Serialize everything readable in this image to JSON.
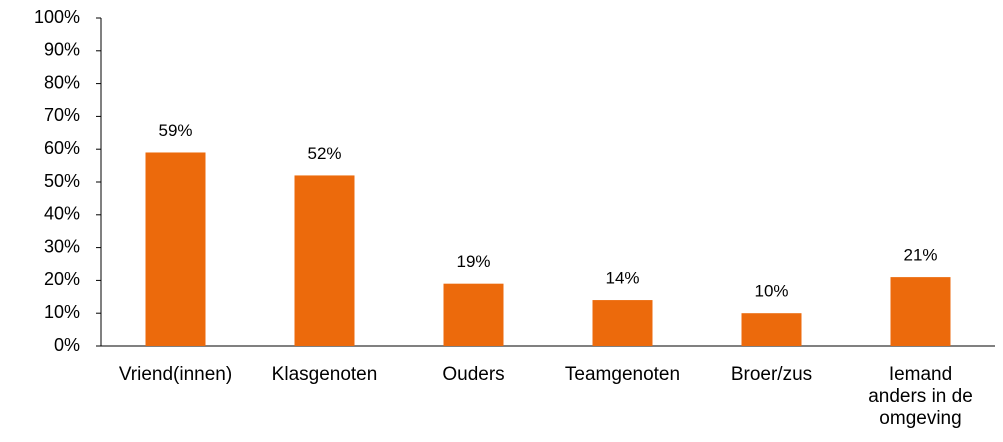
{
  "chart_data": {
    "type": "bar",
    "categories": [
      "Vriend(innen)",
      "Klasgenoten",
      "Ouders",
      "Teamgenoten",
      "Broer/zus",
      "Iemand anders in de omgeving"
    ],
    "values": [
      59,
      52,
      19,
      14,
      10,
      21
    ],
    "value_labels": [
      "59%",
      "52%",
      "19%",
      "14%",
      "10%",
      "21%"
    ],
    "color": "#ec6a0c",
    "ylim": [
      0,
      100
    ],
    "yticks": [
      {
        "value": 0,
        "label": "0%"
      },
      {
        "value": 10,
        "label": "10%"
      },
      {
        "value": 20,
        "label": "20%"
      },
      {
        "value": 30,
        "label": "30%"
      },
      {
        "value": 40,
        "label": "40%"
      },
      {
        "value": 50,
        "label": "50%"
      },
      {
        "value": 60,
        "label": "60%"
      },
      {
        "value": 70,
        "label": "70%"
      },
      {
        "value": 80,
        "label": "80%"
      },
      {
        "value": 90,
        "label": "90%"
      },
      {
        "value": 100,
        "label": "100%"
      }
    ],
    "grid": false
  }
}
